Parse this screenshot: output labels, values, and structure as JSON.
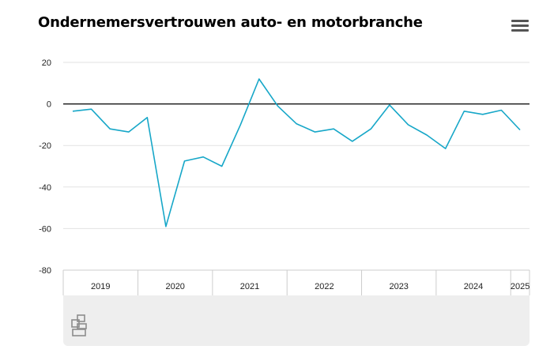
{
  "title": "Ondernemersvertrouwen auto- en motorbranche",
  "menu": {
    "icon": "hamburger-menu-icon"
  },
  "footer": {
    "logo_icon": "cbs-logo-icon"
  },
  "chart_data": {
    "type": "line",
    "title": "Ondernemersvertrouwen auto- en motorbranche",
    "xlabel": "",
    "ylabel": "",
    "ylim": [
      -80,
      20
    ],
    "yticks": [
      20,
      0,
      -20,
      -40,
      -60,
      -80
    ],
    "grid": true,
    "zero_line": true,
    "year_labels": [
      "2019",
      "2020",
      "2021",
      "2022",
      "2023",
      "2024",
      "2025"
    ],
    "x": [
      "2019 Q1",
      "2019 Q2",
      "2019 Q3",
      "2019 Q4",
      "2020 Q1",
      "2020 Q2",
      "2020 Q3",
      "2020 Q4",
      "2021 Q1",
      "2021 Q2",
      "2021 Q3",
      "2021 Q4",
      "2022 Q1",
      "2022 Q2",
      "2022 Q3",
      "2022 Q4",
      "2023 Q1",
      "2023 Q2",
      "2023 Q3",
      "2023 Q4",
      "2024 Q1",
      "2024 Q2",
      "2024 Q3",
      "2024 Q4",
      "2025 Q1"
    ],
    "series": [
      {
        "values": [
          -3.5,
          -2.5,
          -12,
          -13.5,
          -6.5,
          -59,
          -27.5,
          -25.5,
          -30,
          -10,
          12,
          -1,
          -9.5,
          -13.5,
          -12,
          -18,
          -12,
          -0.5,
          -10,
          -15,
          -21.5,
          -3.5,
          -5,
          -3,
          -12.5
        ],
        "color": "#17a7c8"
      }
    ],
    "axis_color": "#000000",
    "grid_color": "#e2e2e2"
  }
}
